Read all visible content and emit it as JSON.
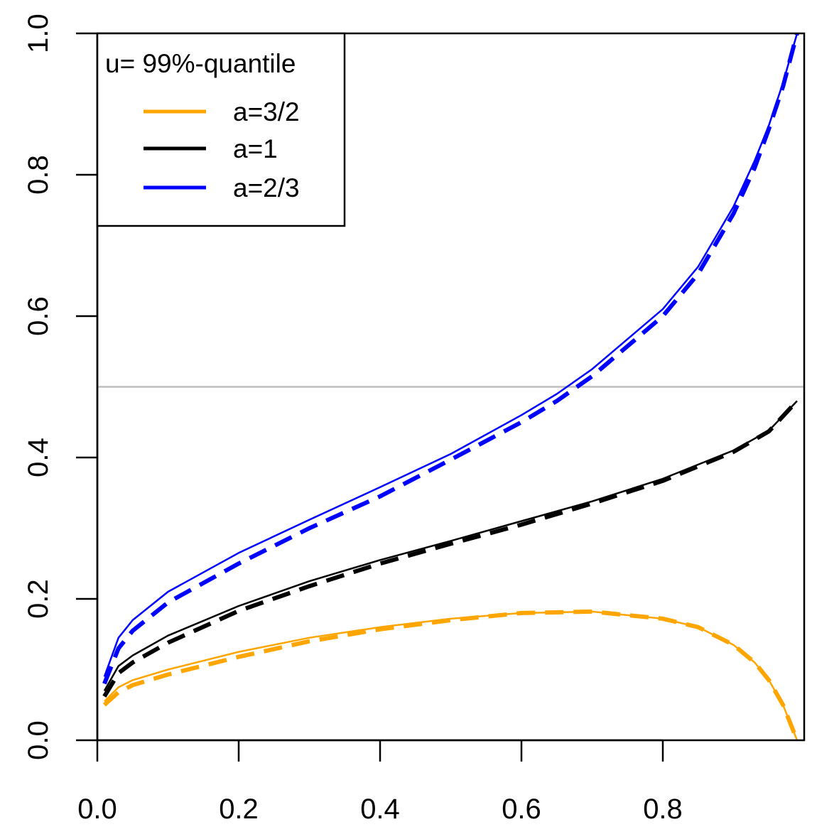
{
  "chart_data": {
    "type": "line",
    "title": "",
    "xlabel": "",
    "ylabel": "",
    "xlim": [
      0.0,
      1.0
    ],
    "ylim": [
      0.0,
      1.0
    ],
    "x_ticks": [
      "0.0",
      "0.2",
      "0.4",
      "0.6",
      "0.8"
    ],
    "y_ticks": [
      "0.0",
      "0.2",
      "0.4",
      "0.6",
      "0.8",
      "1.0"
    ],
    "grid": false,
    "reference_line": {
      "y": 0.5,
      "color": "#bebebe"
    },
    "legend": {
      "placement": "top-left",
      "title": "u= 99%-quantile",
      "entries": [
        {
          "label": "a=3/2",
          "color": "#ffa500"
        },
        {
          "label": "a=1",
          "color": "#000000"
        },
        {
          "label": "a=2/3",
          "color": "#0000ff"
        }
      ]
    },
    "series": [
      {
        "name": "a=3/2",
        "color": "#ffa500",
        "style": "solid",
        "x": [
          0.01,
          0.03,
          0.05,
          0.1,
          0.2,
          0.3,
          0.4,
          0.5,
          0.6,
          0.7,
          0.8,
          0.85,
          0.9,
          0.93,
          0.95,
          0.97,
          0.99
        ],
        "y": [
          0.055,
          0.075,
          0.085,
          0.1,
          0.125,
          0.145,
          0.16,
          0.172,
          0.18,
          0.182,
          0.172,
          0.16,
          0.135,
          0.11,
          0.085,
          0.05,
          0.0
        ]
      },
      {
        "name": "a=3/2",
        "color": "#ffa500",
        "style": "dashed",
        "x": [
          0.01,
          0.03,
          0.05,
          0.1,
          0.2,
          0.3,
          0.4,
          0.5,
          0.6,
          0.7,
          0.8,
          0.85,
          0.9,
          0.93,
          0.95,
          0.97,
          0.99
        ],
        "y": [
          0.05,
          0.068,
          0.078,
          0.093,
          0.118,
          0.14,
          0.157,
          0.17,
          0.18,
          0.182,
          0.172,
          0.16,
          0.135,
          0.11,
          0.085,
          0.05,
          0.0
        ]
      },
      {
        "name": "a=1",
        "color": "#000000",
        "style": "solid",
        "x": [
          0.01,
          0.03,
          0.05,
          0.1,
          0.2,
          0.3,
          0.4,
          0.5,
          0.6,
          0.7,
          0.8,
          0.9,
          0.95,
          0.99
        ],
        "y": [
          0.07,
          0.105,
          0.12,
          0.148,
          0.19,
          0.225,
          0.255,
          0.282,
          0.31,
          0.338,
          0.37,
          0.41,
          0.438,
          0.48
        ]
      },
      {
        "name": "a=1",
        "color": "#000000",
        "style": "dashed",
        "x": [
          0.01,
          0.03,
          0.05,
          0.1,
          0.2,
          0.3,
          0.4,
          0.5,
          0.6,
          0.7,
          0.8,
          0.9,
          0.95,
          0.99
        ],
        "y": [
          0.062,
          0.095,
          0.11,
          0.138,
          0.183,
          0.218,
          0.25,
          0.278,
          0.305,
          0.335,
          0.367,
          0.408,
          0.437,
          0.48
        ]
      },
      {
        "name": "a=2/3",
        "color": "#0000ff",
        "style": "solid",
        "x": [
          0.01,
          0.03,
          0.05,
          0.1,
          0.2,
          0.3,
          0.4,
          0.5,
          0.6,
          0.65,
          0.7,
          0.8,
          0.85,
          0.9,
          0.93,
          0.95,
          0.97,
          0.99
        ],
        "y": [
          0.09,
          0.145,
          0.17,
          0.21,
          0.265,
          0.312,
          0.358,
          0.405,
          0.46,
          0.49,
          0.525,
          0.61,
          0.67,
          0.755,
          0.82,
          0.87,
          0.93,
          1.0
        ]
      },
      {
        "name": "a=2/3",
        "color": "#0000ff",
        "style": "dashed",
        "x": [
          0.01,
          0.03,
          0.05,
          0.1,
          0.2,
          0.3,
          0.4,
          0.5,
          0.6,
          0.65,
          0.7,
          0.8,
          0.85,
          0.9,
          0.93,
          0.95,
          0.97,
          0.99
        ],
        "y": [
          0.08,
          0.13,
          0.155,
          0.195,
          0.25,
          0.3,
          0.345,
          0.397,
          0.45,
          0.48,
          0.515,
          0.6,
          0.66,
          0.745,
          0.81,
          0.865,
          0.925,
          1.0
        ]
      }
    ]
  }
}
